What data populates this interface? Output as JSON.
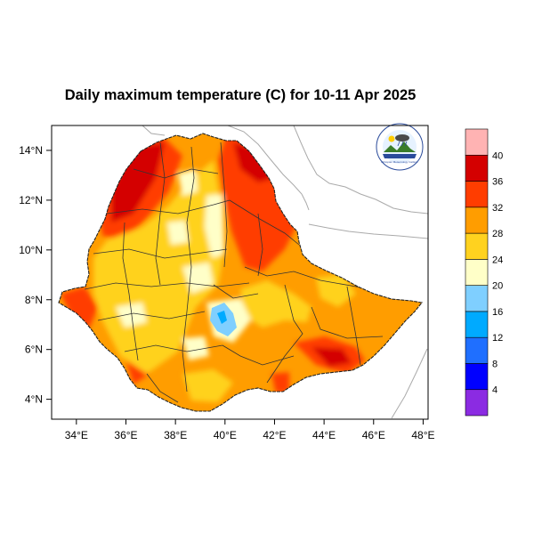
{
  "title": "Daily maximum temperature (C) for 10-11 Apr 2025",
  "map": {
    "lon_range": [
      33,
      48.2
    ],
    "lat_range": [
      3.2,
      15
    ],
    "x_ticks": [
      {
        "value": 34,
        "label": "34°E"
      },
      {
        "value": 36,
        "label": "36°E"
      },
      {
        "value": 38,
        "label": "38°E"
      },
      {
        "value": 40,
        "label": "40°E"
      },
      {
        "value": 42,
        "label": "42°E"
      },
      {
        "value": 44,
        "label": "44°E"
      },
      {
        "value": 46,
        "label": "46°E"
      },
      {
        "value": 48,
        "label": "48°E"
      }
    ],
    "y_ticks": [
      {
        "value": 4,
        "label": "4°N"
      },
      {
        "value": 6,
        "label": "6°N"
      },
      {
        "value": 8,
        "label": "8°N"
      },
      {
        "value": 10,
        "label": "10°N"
      },
      {
        "value": 12,
        "label": "12°N"
      },
      {
        "value": 14,
        "label": "14°N"
      }
    ],
    "colors": {
      "frame": "#000000",
      "country_outline": "#222222",
      "region_lines": "#333333",
      "neighbor_lines": "#aaaaaa",
      "base_fill": "#ff9d00"
    }
  },
  "colorbar": {
    "levels": [
      {
        "color": "#8b2be2",
        "label": "4"
      },
      {
        "color": "#0000ff",
        "label": "8"
      },
      {
        "color": "#1f6fff",
        "label": "12"
      },
      {
        "color": "#00aaff",
        "label": "16"
      },
      {
        "color": "#7fcfff",
        "label": "20"
      },
      {
        "color": "#ffffc8",
        "label": "24"
      },
      {
        "color": "#ffd21f",
        "label": "28"
      },
      {
        "color": "#ff9d00",
        "label": "32"
      },
      {
        "color": "#ff3d00",
        "label": "36"
      },
      {
        "color": "#d40000",
        "label": "40"
      },
      {
        "color": "#ffb3b3",
        "label": ""
      }
    ]
  },
  "logo": {
    "icon": "ethiopian-meteorology-institute-logo",
    "text": "Ethiopian Meteorology Institute"
  }
}
